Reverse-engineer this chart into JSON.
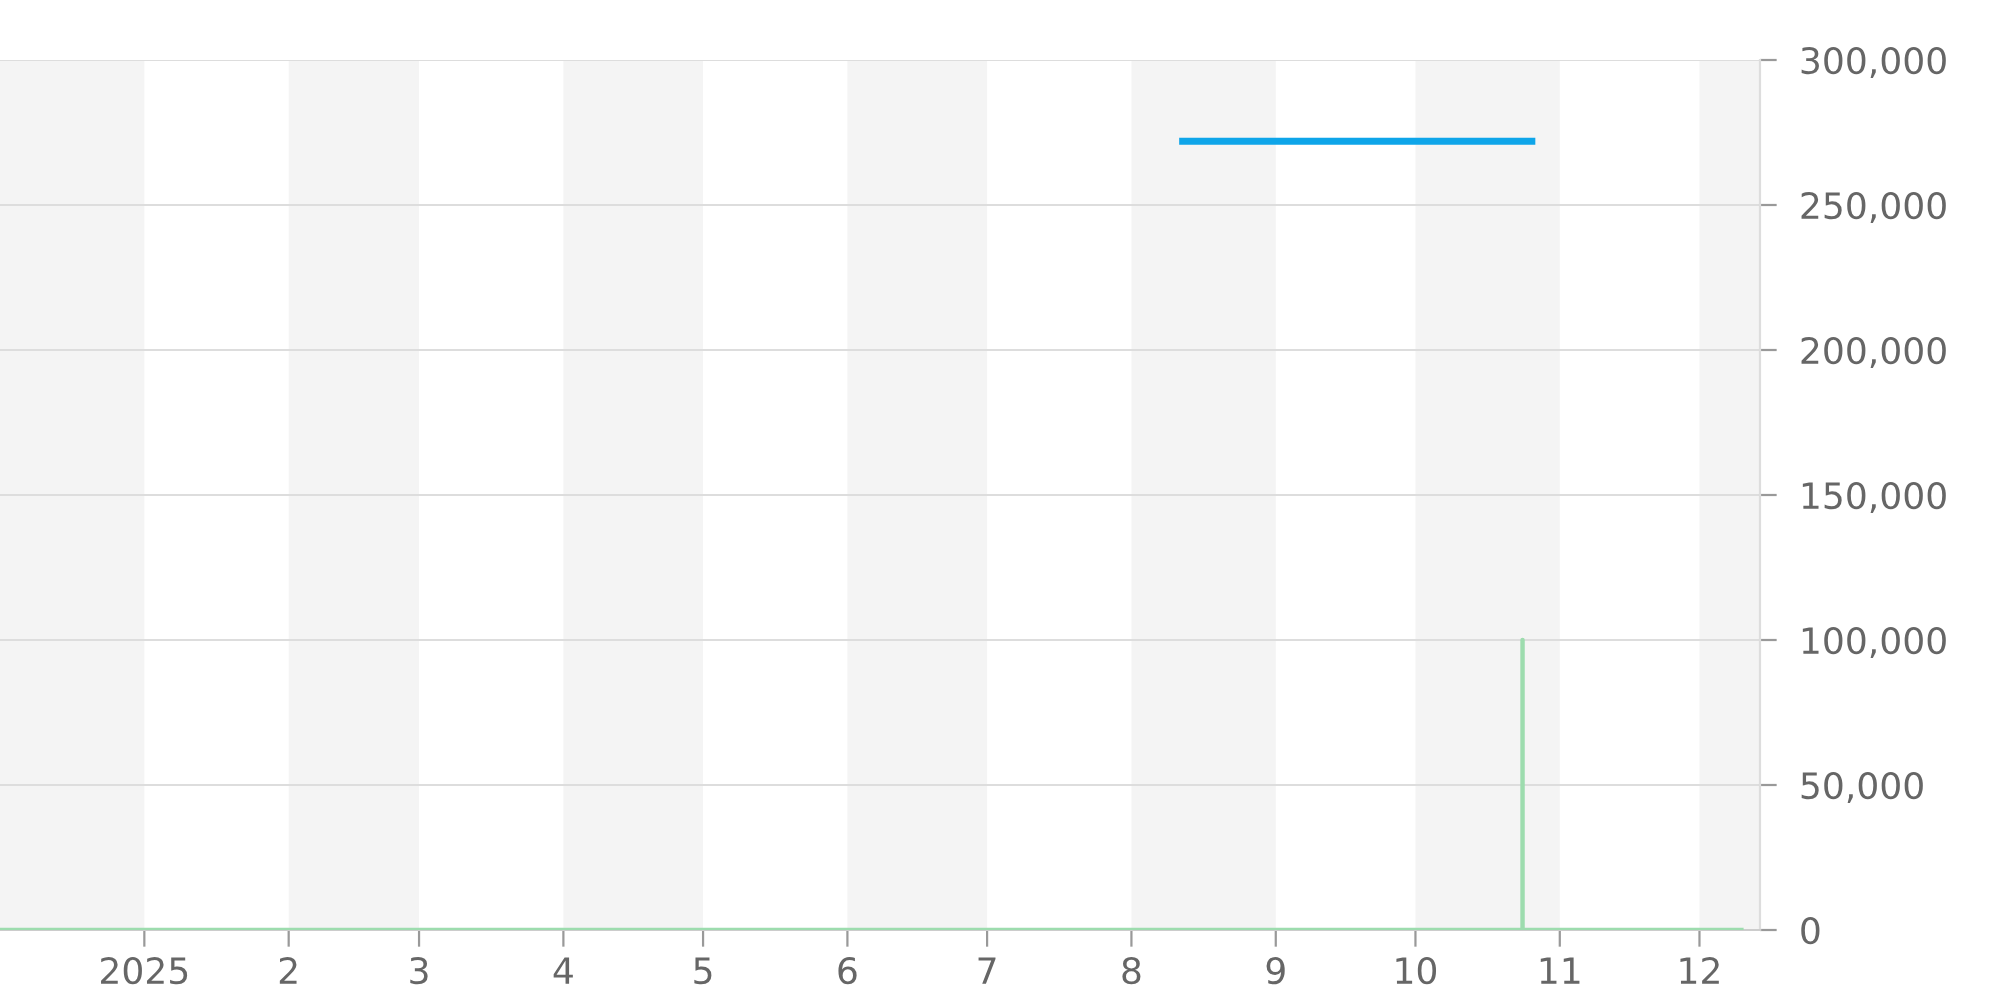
{
  "chart_data": {
    "type": "line",
    "series": [
      {
        "color": "#0ea5e9",
        "x": [
          "2025-08-12",
          "2025-10-26"
        ],
        "values": [
          272000,
          272000
        ]
      },
      {
        "color": "#9ddcae",
        "x": [
          "2024-12-01",
          "2025-10-24",
          "2025-10-24",
          "2025-10-24",
          "2025-12-10"
        ],
        "values": [
          0,
          0,
          100000,
          0,
          0
        ]
      }
    ],
    "xlim": [
      "2024-12-01",
      "2025-12-14"
    ],
    "xticks": [
      {
        "value": "2025-01-01",
        "label": "2025"
      },
      {
        "value": "2025-02-01",
        "label": "2"
      },
      {
        "value": "2025-03-01",
        "label": "3"
      },
      {
        "value": "2025-04-01",
        "label": "4"
      },
      {
        "value": "2025-05-01",
        "label": "5"
      },
      {
        "value": "2025-06-01",
        "label": "6"
      },
      {
        "value": "2025-07-01",
        "label": "7"
      },
      {
        "value": "2025-08-01",
        "label": "8"
      },
      {
        "value": "2025-09-01",
        "label": "9"
      },
      {
        "value": "2025-10-01",
        "label": "10"
      },
      {
        "value": "2025-11-01",
        "label": "11"
      },
      {
        "value": "2025-12-01",
        "label": "12"
      }
    ],
    "ylim": [
      0,
      300000
    ],
    "yticks": [
      {
        "value": 0,
        "label": "0"
      },
      {
        "value": 50000,
        "label": "50,000"
      },
      {
        "value": 100000,
        "label": "100,000"
      },
      {
        "value": 150000,
        "label": "150,000"
      },
      {
        "value": 200000,
        "label": "200,000"
      },
      {
        "value": 250000,
        "label": "250,000"
      },
      {
        "value": 300000,
        "label": "300,000"
      }
    ],
    "bands": [
      {
        "axis": "x",
        "from": "2024-12-01",
        "to": "2025-01-01",
        "color": "#f4f4f4"
      },
      {
        "axis": "x",
        "from": "2025-02-01",
        "to": "2025-03-01",
        "color": "#f4f4f4"
      },
      {
        "axis": "x",
        "from": "2025-04-01",
        "to": "2025-05-01",
        "color": "#f4f4f4"
      },
      {
        "axis": "x",
        "from": "2025-06-01",
        "to": "2025-07-01",
        "color": "#f4f4f4"
      },
      {
        "axis": "x",
        "from": "2025-08-01",
        "to": "2025-09-01",
        "color": "#f4f4f4"
      },
      {
        "axis": "x",
        "from": "2025-10-01",
        "to": "2025-11-01",
        "color": "#f4f4f4"
      },
      {
        "axis": "x",
        "from": "2025-12-01",
        "to": "2025-12-14",
        "color": "#f4f4f4"
      }
    ],
    "grid": "y"
  }
}
